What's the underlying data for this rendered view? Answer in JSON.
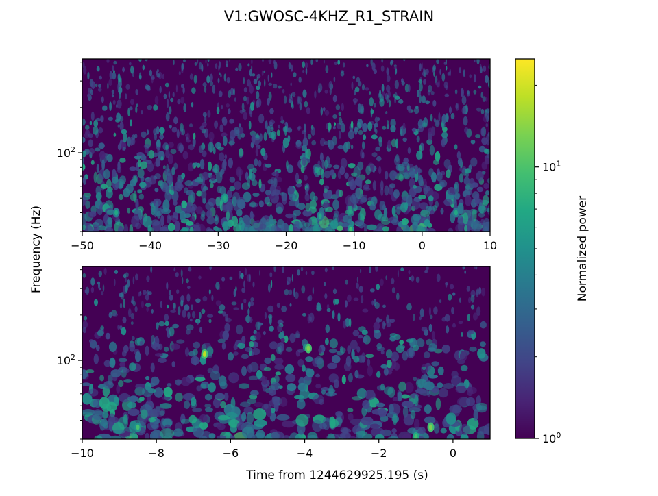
{
  "chart_data": {
    "type": "heatmap",
    "title": "V1:GWOSC-4KHZ_R1_STRAIN",
    "ylabel": "Frequency (Hz)",
    "xlabel": "Time from 1244629925.195 (s)",
    "colorbar": {
      "label": "Normalized power",
      "scale": "log",
      "range": [
        1,
        25
      ],
      "colormap": "viridis",
      "ticks": [
        {
          "value": 1,
          "label": "10^0"
        },
        {
          "value": 10,
          "label": "10^1"
        }
      ]
    },
    "panels": [
      {
        "name": "top",
        "xlim": [
          -50,
          10
        ],
        "ylim": [
          30,
          420
        ],
        "yscale": "log",
        "xticks": [
          -50,
          -40,
          -30,
          -20,
          -10,
          0,
          10
        ],
        "xtick_labels": [
          "−50",
          "−40",
          "−30",
          "−20",
          "−10",
          "0",
          "10"
        ],
        "yticks": [
          {
            "value": 100,
            "label": "10^2"
          }
        ],
        "bright_spots": [
          {
            "t": -29,
            "f": 50,
            "power": 8
          },
          {
            "t": -10.5,
            "f": 31,
            "power": 9
          },
          {
            "t": -15,
            "f": 38,
            "power": 7
          },
          {
            "t": -45,
            "f": 40,
            "power": 6
          },
          {
            "t": 5,
            "f": 40,
            "power": 6
          }
        ]
      },
      {
        "name": "bottom",
        "xlim": [
          -10,
          1
        ],
        "ylim": [
          30,
          420
        ],
        "yscale": "log",
        "xticks": [
          -10,
          -8,
          -6,
          -4,
          -2,
          0
        ],
        "xtick_labels": [
          "−10",
          "−8",
          "−6",
          "−4",
          "−2",
          "0"
        ],
        "yticks": [
          {
            "value": 100,
            "label": "10^2"
          }
        ],
        "bright_spots": [
          {
            "t": -6.7,
            "f": 110,
            "power": 18
          },
          {
            "t": -3.9,
            "f": 120,
            "power": 15
          },
          {
            "t": -0.6,
            "f": 36,
            "power": 14
          },
          {
            "t": -1.0,
            "f": 31,
            "power": 11
          },
          {
            "t": -8.5,
            "f": 36,
            "power": 9
          }
        ]
      }
    ]
  }
}
